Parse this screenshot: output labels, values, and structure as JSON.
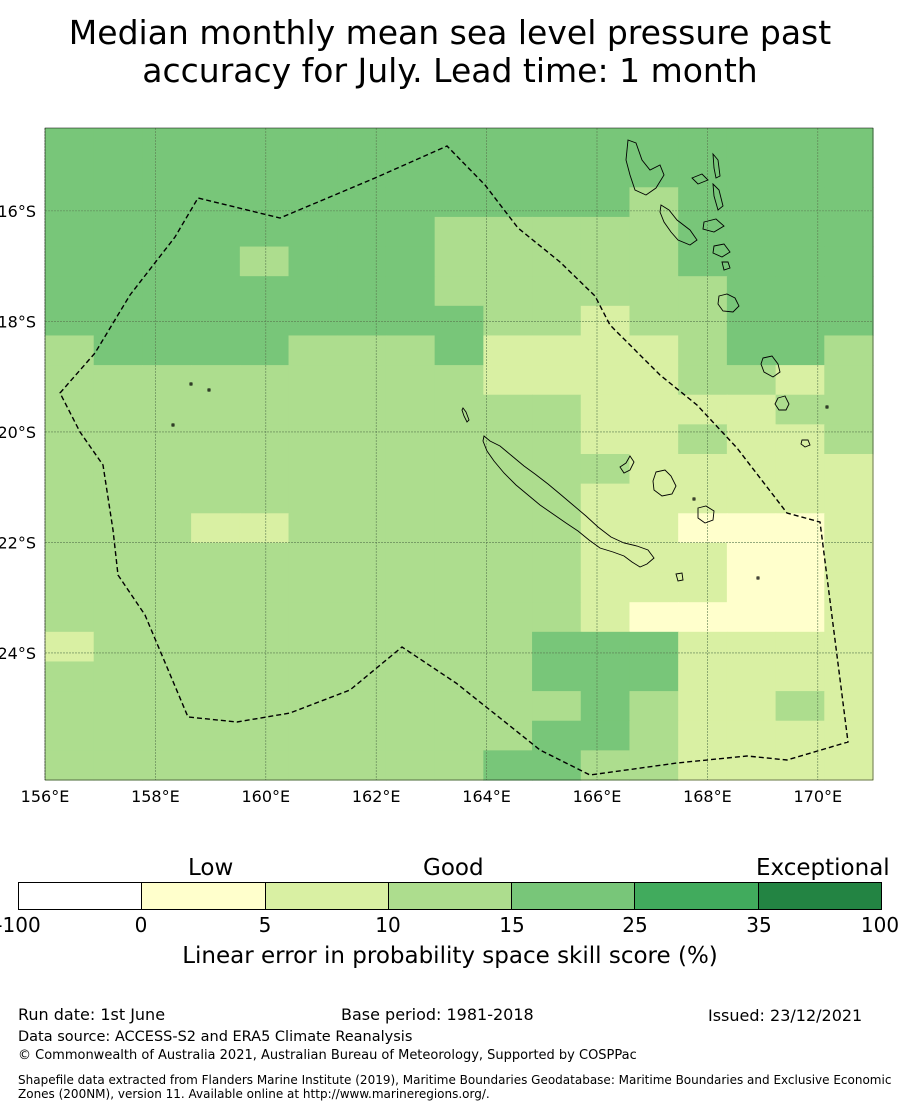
{
  "title_line1": "Median monthly mean sea level pressure past",
  "title_line2": "accuracy for July. Lead time: 1 month",
  "map": {
    "lon_labels": [
      "156°E",
      "158°E",
      "160°E",
      "162°E",
      "164°E",
      "166°E",
      "168°E",
      "170°E"
    ],
    "lat_labels": [
      "16°S",
      "18°S",
      "20°S",
      "22°S",
      "24°S"
    ],
    "lon_range": [
      156,
      171
    ],
    "lat_range": [
      -26.3,
      -14.5
    ],
    "grid_cell_deg": 0.833,
    "category_colors": [
      "#ffffff",
      "#ffffcc",
      "#d9f0a3",
      "#addd8e",
      "#78c679",
      "#41ab5d",
      "#238443"
    ],
    "cell_grid_rows": [
      "44444444444444444",
      "44444444444444444",
      "44444444444444444",
      "44444444333334444",
      "44443444333334444",
      "44444444333333444",
      "44444444433233444",
      "34444333422223443",
      "33333333322223323",
      "33333333333222233",
      "33333333333223223",
      "33333333333322222",
      "33333333333222222",
      "33332333333221112",
      "33333333333222112",
      "33333333333222112",
      "33333333333211113",
      "23333333333332222",
      "33333333333332222",
      "33333333333332232",
      "33333333333332222",
      "33333333333332222"
    ],
    "cell_grid_overrides": [
      {
        "r": 2,
        "c": 12,
        "v": 3
      },
      {
        "r": 17,
        "c": 10,
        "v": 4
      },
      {
        "r": 17,
        "c": 11,
        "v": 4
      },
      {
        "r": 17,
        "c": 12,
        "v": 4
      },
      {
        "r": 18,
        "c": 10,
        "v": 4
      },
      {
        "r": 18,
        "c": 11,
        "v": 4
      },
      {
        "r": 18,
        "c": 12,
        "v": 4
      },
      {
        "r": 19,
        "c": 11,
        "v": 4
      },
      {
        "r": 20,
        "c": 10,
        "v": 4
      },
      {
        "r": 20,
        "c": 11,
        "v": 4
      },
      {
        "r": 21,
        "c": 9,
        "v": 4
      },
      {
        "r": 21,
        "c": 10,
        "v": 4
      },
      {
        "r": 21,
        "c": 13,
        "v": 2
      },
      {
        "r": 21,
        "c": 14,
        "v": 2
      },
      {
        "r": 13,
        "c": 3,
        "v": 2
      },
      {
        "r": 16,
        "c": 16,
        "v": 2
      }
    ]
  },
  "colorbar": {
    "categories": [
      "Low",
      "Good",
      "Exceptional"
    ],
    "ticks": [
      "-100",
      "0",
      "5",
      "10",
      "15",
      "25",
      "35",
      "100"
    ],
    "label": "Linear error in probability space skill score (%)"
  },
  "footer": {
    "run_date": "Run date: 1st June",
    "base_period": "Base period: 1981-2018",
    "issued": "Issued: 23/12/2021",
    "data_source": "Data source: ACCESS-S2 and ERA5 Climate Reanalysis",
    "copyright": "© Commonwealth of Australia 2021, Australian Bureau of Meteorology, Supported by COSPPac",
    "shapefile": "Shapefile data extracted from Flanders Marine Institute (2019), Maritime Boundaries Geodatabase: Maritime Boundaries and Exclusive Economic Zones (200NM), version 11. Available online at http://www.marineregions.org/."
  }
}
